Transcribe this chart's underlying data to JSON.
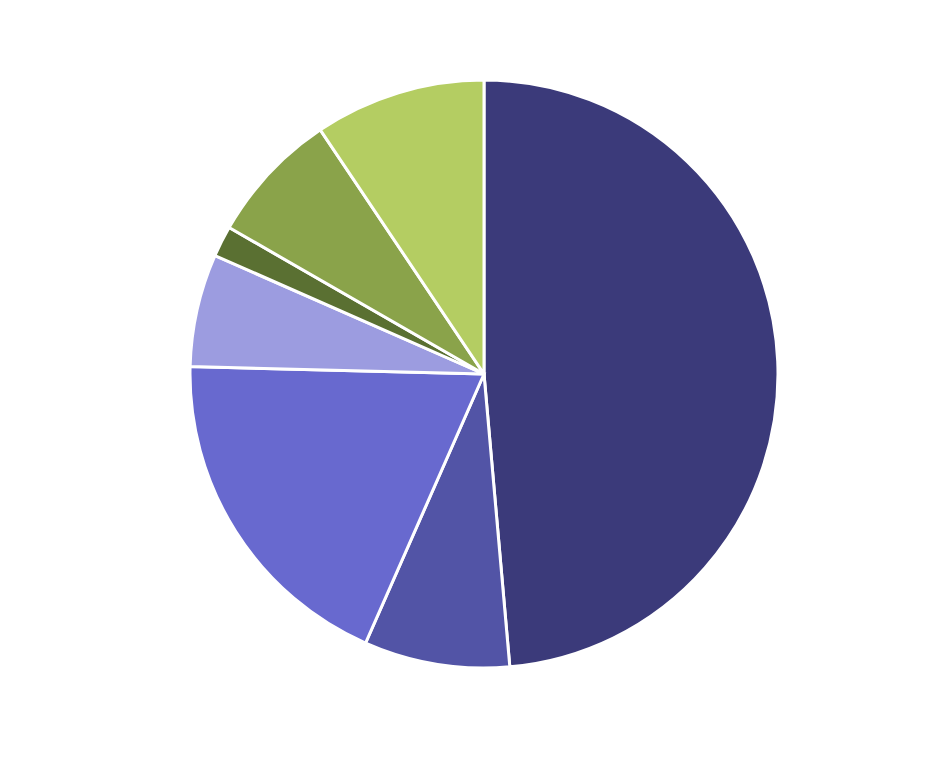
{
  "chart_data": {
    "type": "pie",
    "categories": [
      null,
      null,
      null,
      null,
      null,
      null,
      null
    ],
    "values": [
      48.6,
      8,
      18.8,
      6.2,
      1.7,
      7.3,
      9.4
    ],
    "colors": [
      "#3b3a7a",
      "#5254a6",
      "#6869cf",
      "#9c9ce0",
      "#5a7032",
      "#8aa34a",
      "#b4cd62"
    ],
    "legend": false
  }
}
